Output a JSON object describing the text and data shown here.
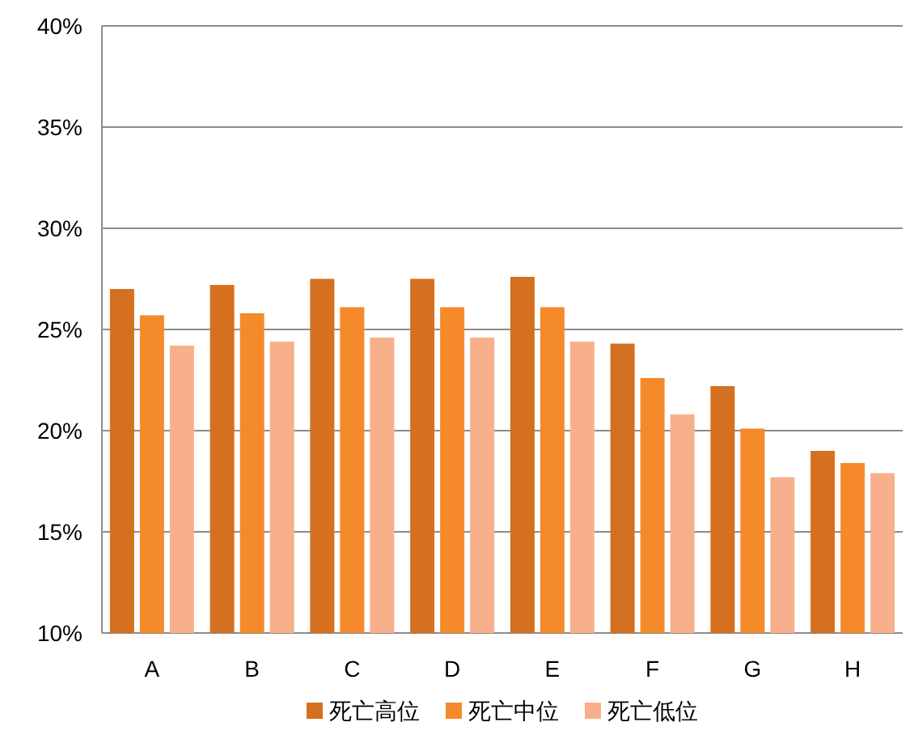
{
  "chart_data": {
    "type": "bar",
    "categories": [
      "A",
      "B",
      "C",
      "D",
      "E",
      "F",
      "G",
      "H"
    ],
    "series": [
      {
        "name": "死亡高位",
        "color": "#d4701f",
        "values": [
          27.0,
          27.2,
          27.5,
          27.5,
          27.6,
          24.3,
          22.2,
          19.0
        ]
      },
      {
        "name": "死亡中位",
        "color": "#f58a2a",
        "values": [
          25.7,
          25.8,
          26.1,
          26.1,
          26.1,
          22.6,
          20.1,
          18.4
        ]
      },
      {
        "name": "死亡低位",
        "color": "#f8b08c",
        "values": [
          24.2,
          24.4,
          24.6,
          24.6,
          24.4,
          20.8,
          17.7,
          17.9
        ]
      }
    ],
    "ylim": [
      10,
      40
    ],
    "yticks": [
      {
        "value": 10,
        "label": "10%"
      },
      {
        "value": 15,
        "label": "15%"
      },
      {
        "value": 20,
        "label": "20%"
      },
      {
        "value": 25,
        "label": "25%"
      },
      {
        "value": 30,
        "label": "30%"
      },
      {
        "value": 35,
        "label": "35%"
      },
      {
        "value": 40,
        "label": "40%"
      }
    ],
    "grid": "y",
    "legend": "bottom"
  }
}
